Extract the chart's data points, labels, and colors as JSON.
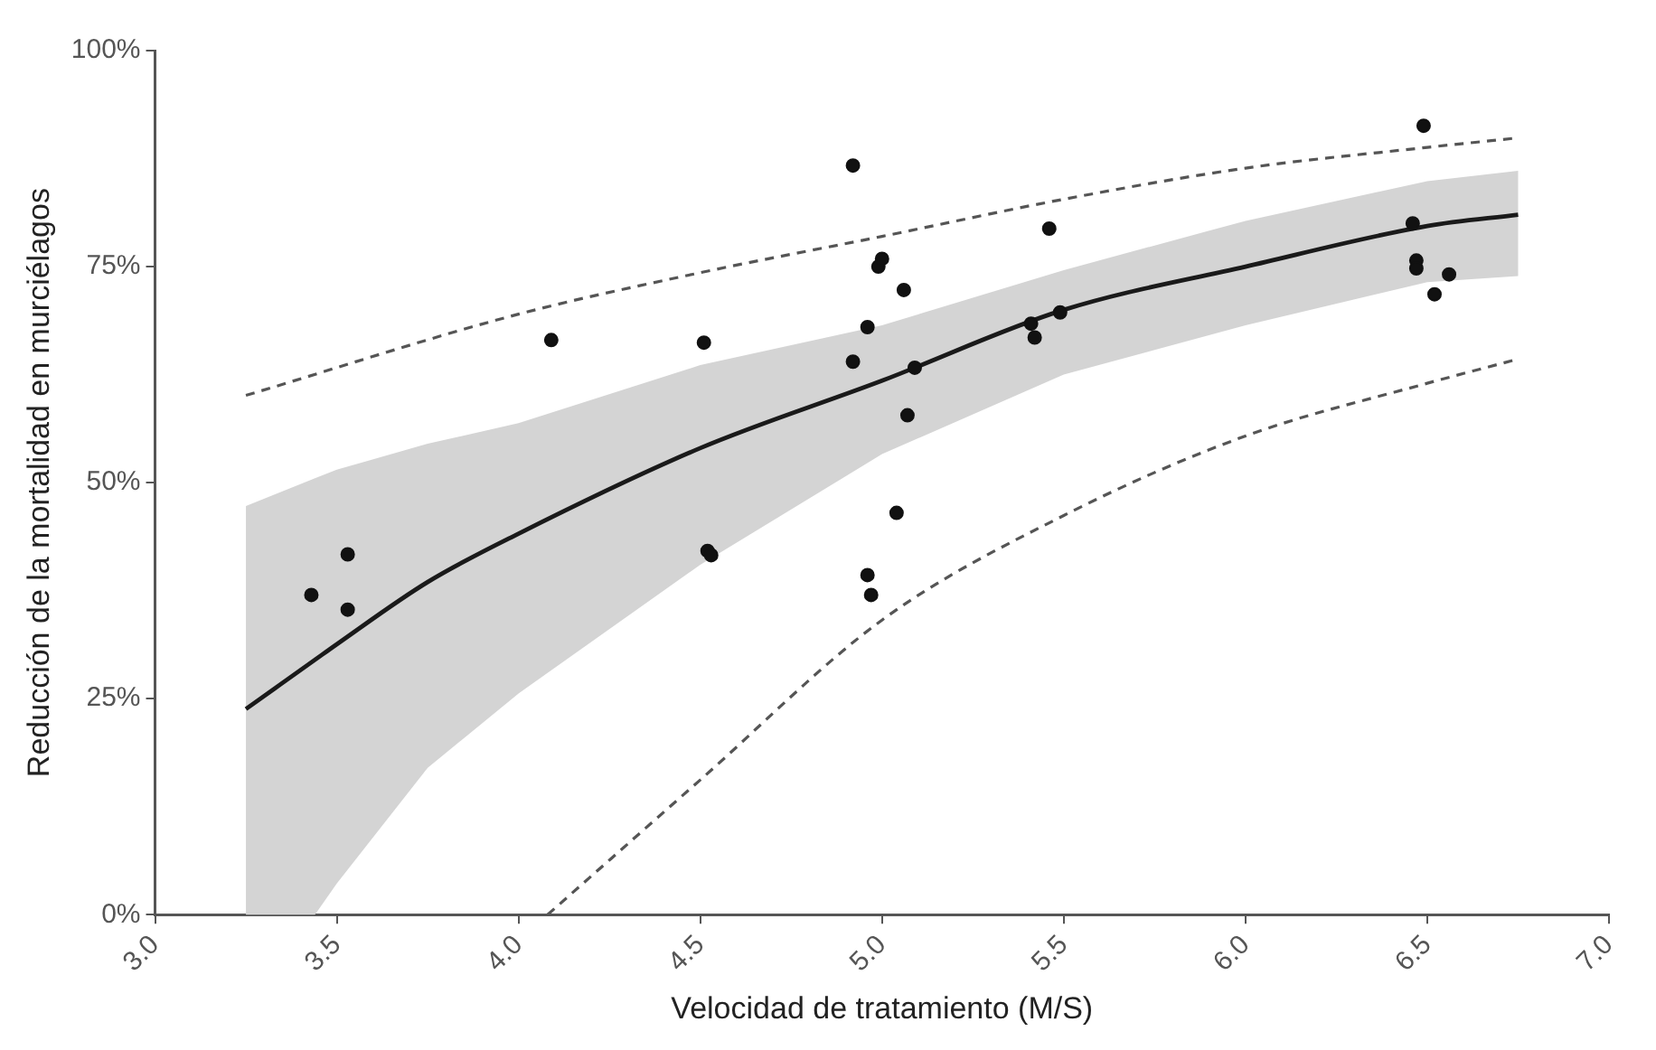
{
  "chart_data": {
    "type": "scatter",
    "xlabel": "Velocidad de tratamiento (M/S)",
    "ylabel": "Reducción de la mortalidad en murciélagos",
    "xlim": [
      3,
      7
    ],
    "xticks": [
      {
        "value": 3,
        "label": "3.0"
      },
      {
        "value": 3.5,
        "label": "3.5"
      },
      {
        "value": 4,
        "label": "4.0"
      },
      {
        "value": 4.5,
        "label": "4.5"
      },
      {
        "value": 5,
        "label": "5.0"
      },
      {
        "value": 5.5,
        "label": "5.5"
      },
      {
        "value": 6,
        "label": "6.0"
      },
      {
        "value": 6.5,
        "label": "6.5"
      },
      {
        "value": 7,
        "label": "7.0"
      }
    ],
    "ylim": [
      0,
      100
    ],
    "yticks": [
      {
        "value": 0,
        "label": "0%"
      },
      {
        "value": 25,
        "label": "25%"
      },
      {
        "value": 50,
        "label": "50%"
      },
      {
        "value": 75,
        "label": "75%"
      },
      {
        "value": 100,
        "label": "100%"
      }
    ],
    "grid": false,
    "legend": false,
    "series": [
      {
        "type": "scatter",
        "color": "#111111",
        "marker": "circle",
        "x": [
          3.43,
          3.53,
          3.53,
          4.09,
          4.51,
          4.52,
          4.53,
          4.92,
          4.96,
          4.92,
          4.96,
          4.97,
          4.99,
          5.0,
          5.06,
          5.09,
          5.07,
          5.04,
          5.46,
          5.41,
          5.42,
          5.49,
          6.49,
          6.46,
          6.47,
          6.47,
          6.56,
          6.52
        ],
        "values": [
          37.0,
          41.7,
          35.3,
          66.5,
          66.2,
          42.1,
          41.6,
          86.7,
          68.0,
          64.0,
          39.3,
          37.0,
          75.0,
          75.9,
          72.3,
          63.3,
          57.8,
          46.5,
          79.4,
          68.4,
          66.8,
          69.7,
          91.3,
          80.0,
          75.7,
          74.8,
          74.1,
          71.8
        ]
      },
      {
        "type": "line",
        "color": "#1a1a1a",
        "line_style": "solid",
        "marker": "none",
        "x": [
          3.25,
          3.44,
          3.5,
          3.75,
          4.0,
          4.5,
          5.0,
          5.5,
          6.0,
          6.5,
          6.75
        ],
        "values": [
          23.8,
          29.5,
          31.3,
          38.5,
          44.1,
          54.0,
          61.8,
          70.0,
          75.0,
          79.7,
          81.0
        ],
        "lower": [
          0,
          0,
          3.6,
          17.0,
          25.6,
          40.5,
          53.3,
          62.5,
          68.2,
          73.2,
          73.9
        ],
        "upper": [
          47.3,
          50.5,
          51.5,
          54.5,
          56.9,
          63.6,
          68.2,
          74.6,
          80.3,
          84.9,
          86.1
        ]
      },
      {
        "type": "line",
        "color": "#555555",
        "line_style": "dashed",
        "marker": "none",
        "x": [
          3.25,
          4.0,
          4.5,
          5.0,
          5.5,
          6.0,
          6.5,
          6.75
        ],
        "values": [
          60.1,
          69.5,
          74.3,
          78.5,
          82.8,
          86.4,
          88.8,
          89.9
        ]
      },
      {
        "type": "line",
        "color": "#555555",
        "line_style": "dashed",
        "marker": "none",
        "x": [
          4.08,
          4.5,
          5.0,
          5.5,
          6.0,
          6.5,
          6.75
        ],
        "values": [
          0,
          15.6,
          34.1,
          46.2,
          55.4,
          61.5,
          64.3
        ]
      }
    ]
  }
}
